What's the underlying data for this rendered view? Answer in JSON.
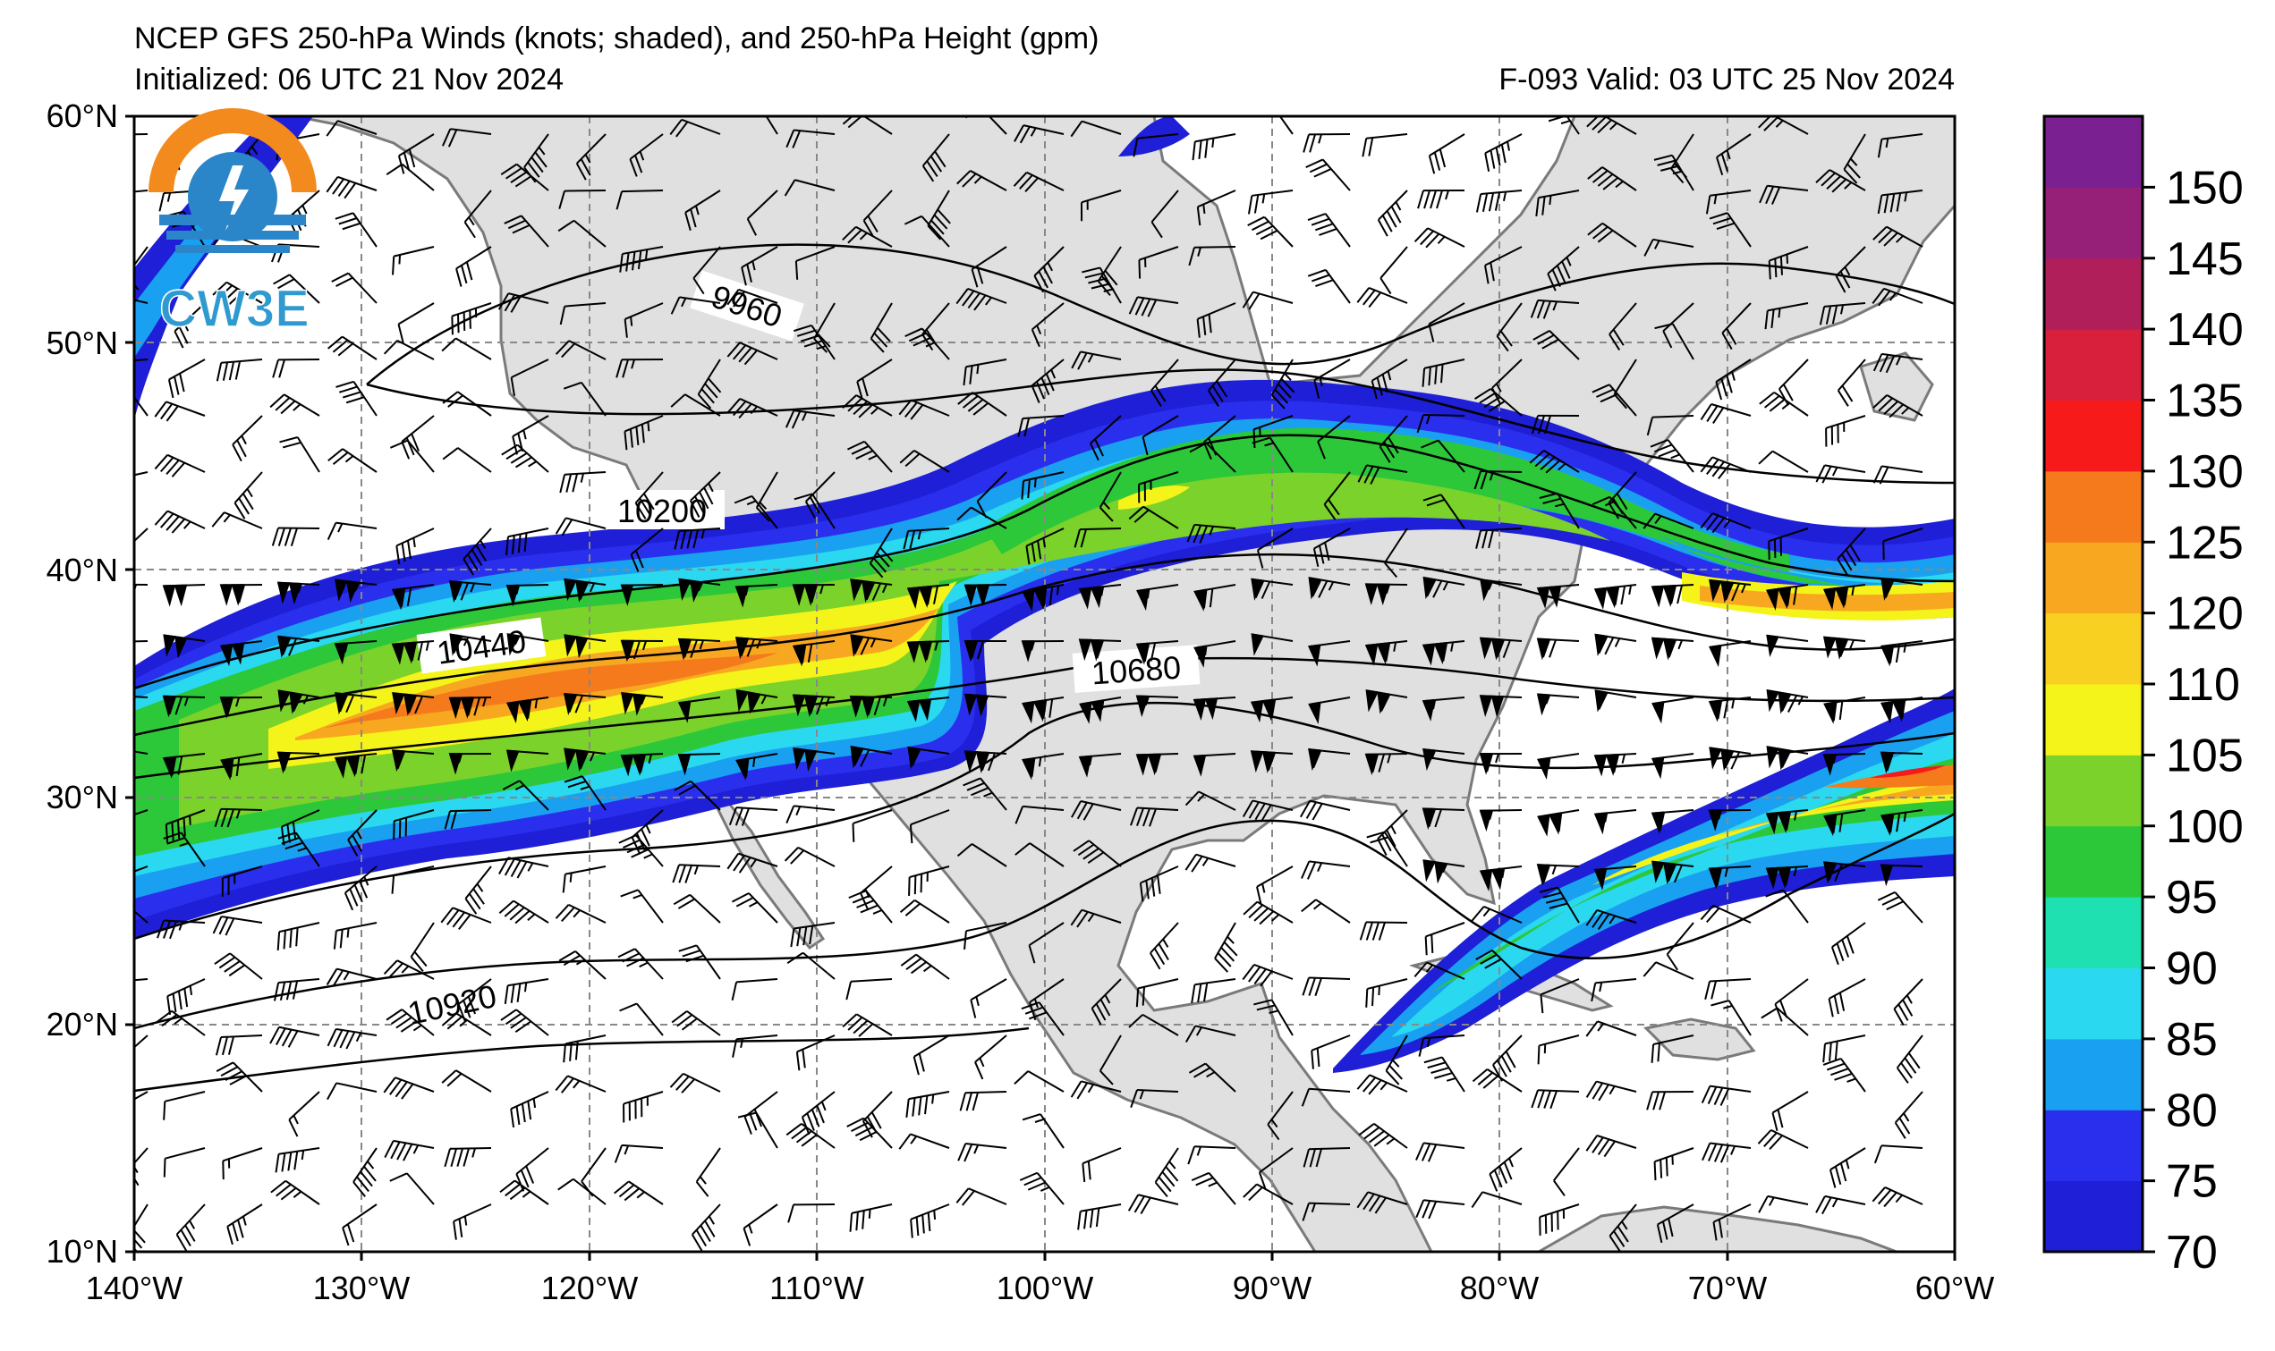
{
  "title": {
    "main": "NCEP GFS 250-hPa Winds (knots; shaded), and 250-hPa Height (gpm)",
    "initialized": "Initialized: 06 UTC 21 Nov 2024",
    "valid": "F-093  Valid: 03 UTC 25 Nov 2024"
  },
  "logo": {
    "text": "CW3E",
    "icon": "cw3e-logo-icon"
  },
  "axes": {
    "lat_labels": [
      "60°N",
      "50°N",
      "40°N",
      "30°N",
      "20°N",
      "10°N"
    ],
    "lon_labels": [
      "140°W",
      "130°W",
      "120°W",
      "110°W",
      "100°W",
      "90°W",
      "80°W",
      "70°W",
      "60°W"
    ]
  },
  "contour_labels": [
    "9960",
    "10200",
    "10440",
    "10680",
    "10920"
  ],
  "colorbar": {
    "ticks": [
      "150",
      "145",
      "140",
      "135",
      "130",
      "125",
      "120",
      "110",
      "105",
      "100",
      "95",
      "90",
      "85",
      "80",
      "75",
      "70"
    ],
    "colors": [
      "#1e1fd6",
      "#2a2fee",
      "#1aa0f0",
      "#2ad8f0",
      "#1ee0b0",
      "#2cc83a",
      "#7ad22a",
      "#f4f41a",
      "#f8d021",
      "#f8a820",
      "#f47a1c",
      "#f61a1a",
      "#d8203c",
      "#b01f5a",
      "#962078",
      "#7a2090"
    ]
  },
  "colors": {
    "land": "#e0e0e0",
    "ocean": "#ffffff",
    "coast": "#7a7a7a",
    "grid": "#888888"
  }
}
